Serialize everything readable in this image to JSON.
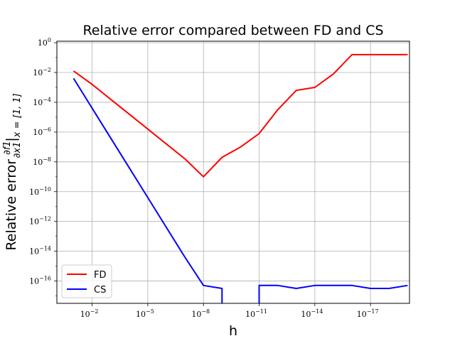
{
  "chart_data": {
    "type": "line",
    "title": "Relative error compared between FD and CS",
    "xlabel": "h",
    "ylabel_prefix": "Relative error ",
    "ylabel_frac_num": "∂f1",
    "ylabel_frac_den": "∂x1",
    "ylabel_subscript": "x = [1, 1]",
    "x_scale": "log",
    "y_scale": "log",
    "xlim_exp": [
      -0.1,
      -19.1
    ],
    "ylim_exp": [
      -17.5,
      0.1
    ],
    "x_ticks": [
      {
        "exp": -2,
        "label": "10",
        "sup": "−2"
      },
      {
        "exp": -5,
        "label": "10",
        "sup": "−5"
      },
      {
        "exp": -8,
        "label": "10",
        "sup": "−8"
      },
      {
        "exp": -11,
        "label": "10",
        "sup": "−11"
      },
      {
        "exp": -14,
        "label": "10",
        "sup": "−14"
      },
      {
        "exp": -17,
        "label": "10",
        "sup": "−17"
      }
    ],
    "y_ticks": [
      {
        "exp": 0,
        "label": "10",
        "sup": "0"
      },
      {
        "exp": -2,
        "label": "10",
        "sup": "−2"
      },
      {
        "exp": -4,
        "label": "10",
        "sup": "−4"
      },
      {
        "exp": -6,
        "label": "10",
        "sup": "−6"
      },
      {
        "exp": -8,
        "label": "10",
        "sup": "−8"
      },
      {
        "exp": -10,
        "label": "10",
        "sup": "−10"
      },
      {
        "exp": -12,
        "label": "10",
        "sup": "−12"
      },
      {
        "exp": -14,
        "label": "10",
        "sup": "−14"
      },
      {
        "exp": -16,
        "label": "10",
        "sup": "−16"
      }
    ],
    "grid": true,
    "legend_position": "bottom-left",
    "series": [
      {
        "name": "FD",
        "color": "#ff0000",
        "x_exp": [
          -1,
          -2,
          -3,
          -4,
          -5,
          -6,
          -7,
          -8,
          -9,
          -10,
          -11,
          -12,
          -13,
          -14,
          -15,
          -16,
          -17,
          -18,
          -19
        ],
        "y_exp": [
          -1.9,
          -2.8,
          -3.8,
          -4.8,
          -5.8,
          -6.8,
          -7.8,
          -9.0,
          -7.7,
          -7.0,
          -6.1,
          -4.5,
          -3.2,
          -3.0,
          -2.1,
          -0.8,
          -0.8,
          -0.8,
          -0.8
        ]
      },
      {
        "name": "CS",
        "color": "#0000ff",
        "x_exp": [
          -1,
          -2,
          -3,
          -4,
          -5,
          -6,
          -7,
          -8,
          -9,
          -9,
          -11,
          -11,
          -12,
          -13,
          -14,
          -15,
          -16,
          -17,
          -18,
          -19
        ],
        "y_exp": [
          -2.4,
          -4.4,
          -6.4,
          -8.4,
          -10.4,
          -12.4,
          -14.4,
          -16.3,
          -16.5,
          -17.6,
          -17.6,
          -16.3,
          -16.3,
          -16.5,
          -16.3,
          -16.3,
          -16.3,
          -16.5,
          -16.5,
          -16.3
        ]
      }
    ]
  }
}
